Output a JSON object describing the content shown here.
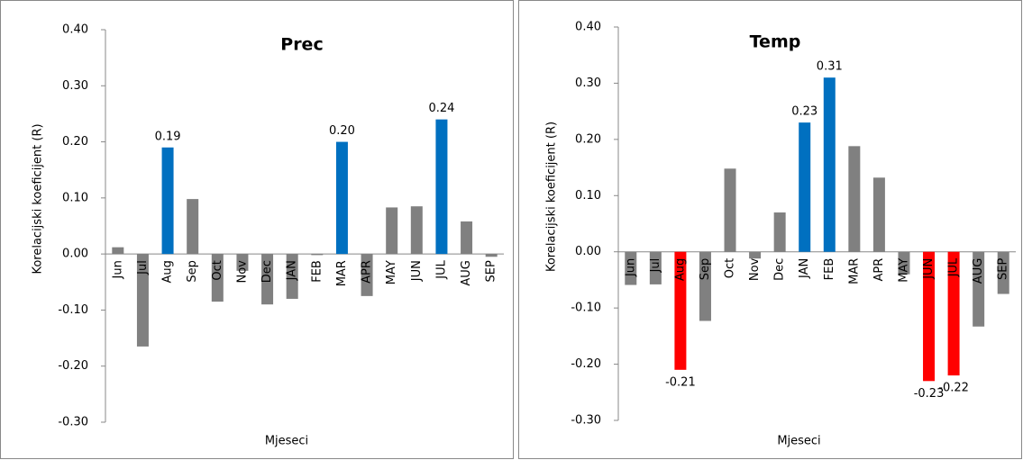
{
  "chart_data": [
    {
      "type": "bar",
      "title": "Prec",
      "y_label": "Korelacijski koeficijent (R)",
      "x_label": "Mjeseci",
      "categories": [
        "Jun",
        "Jul",
        "Aug",
        "Sep",
        "Oct",
        "Nov",
        "Dec",
        "JAN",
        "FEB",
        "MAR",
        "APR",
        "MAY",
        "JUN",
        "JUL",
        "AUG",
        "SEP"
      ],
      "values": [
        0.012,
        -0.165,
        0.19,
        0.098,
        -0.085,
        -0.03,
        -0.09,
        -0.08,
        -0.002,
        0.2,
        -0.075,
        0.083,
        0.085,
        0.24,
        0.058,
        -0.005
      ],
      "value_labels": [
        null,
        null,
        "0.19",
        null,
        null,
        null,
        null,
        null,
        null,
        "0.20",
        null,
        null,
        null,
        "0.24",
        null,
        null
      ],
      "colors": [
        "#808080",
        "#808080",
        "#0070c0",
        "#808080",
        "#808080",
        "#808080",
        "#808080",
        "#808080",
        "#808080",
        "#0070c0",
        "#808080",
        "#808080",
        "#808080",
        "#0070c0",
        "#808080",
        "#808080"
      ],
      "ylim": [
        -0.3,
        0.4
      ],
      "yticks": [
        {
          "value": -0.3,
          "label": "-0.30"
        },
        {
          "value": -0.2,
          "label": "-0.20"
        },
        {
          "value": -0.1,
          "label": "-0.10"
        },
        {
          "value": 0,
          "label": "0.00"
        },
        {
          "value": 0.1,
          "label": "0.10"
        },
        {
          "value": 0.2,
          "label": "0.20"
        },
        {
          "value": 0.3,
          "label": "0.30"
        },
        {
          "value": 0.4,
          "label": "0.40"
        }
      ]
    },
    {
      "type": "bar",
      "title": "Temp",
      "y_label": "Korelacijski koeficijent (R)",
      "x_label": "Mjeseci",
      "categories": [
        "Jun",
        "Jul",
        "Aug",
        "Sep",
        "Oct",
        "Nov",
        "Dec",
        "JAN",
        "FEB",
        "MAR",
        "APR",
        "MAY",
        "JUN",
        "JUL",
        "AUG",
        "SEP"
      ],
      "values": [
        -0.059,
        -0.058,
        -0.21,
        -0.123,
        0.148,
        -0.012,
        0.07,
        0.23,
        0.31,
        0.188,
        0.132,
        -0.04,
        -0.23,
        -0.22,
        -0.133,
        -0.075
      ],
      "value_labels": [
        null,
        null,
        "-0.21",
        null,
        null,
        null,
        null,
        "0.23",
        "0.31",
        null,
        null,
        null,
        "-0.23",
        "-0.22",
        null,
        null
      ],
      "colors": [
        "#808080",
        "#808080",
        "#ff0000",
        "#808080",
        "#808080",
        "#808080",
        "#808080",
        "#0070c0",
        "#0070c0",
        "#808080",
        "#808080",
        "#808080",
        "#ff0000",
        "#ff0000",
        "#808080",
        "#808080"
      ],
      "ylim": [
        -0.3,
        0.4
      ],
      "yticks": [
        {
          "value": -0.3,
          "label": "-0.30"
        },
        {
          "value": -0.2,
          "label": "-0.20"
        },
        {
          "value": -0.1,
          "label": "-0.10"
        },
        {
          "value": 0,
          "label": "0.00"
        },
        {
          "value": 0.1,
          "label": "0.10"
        },
        {
          "value": 0.2,
          "label": "0.20"
        },
        {
          "value": 0.3,
          "label": "0.30"
        },
        {
          "value": 0.4,
          "label": "0.40"
        }
      ]
    }
  ]
}
